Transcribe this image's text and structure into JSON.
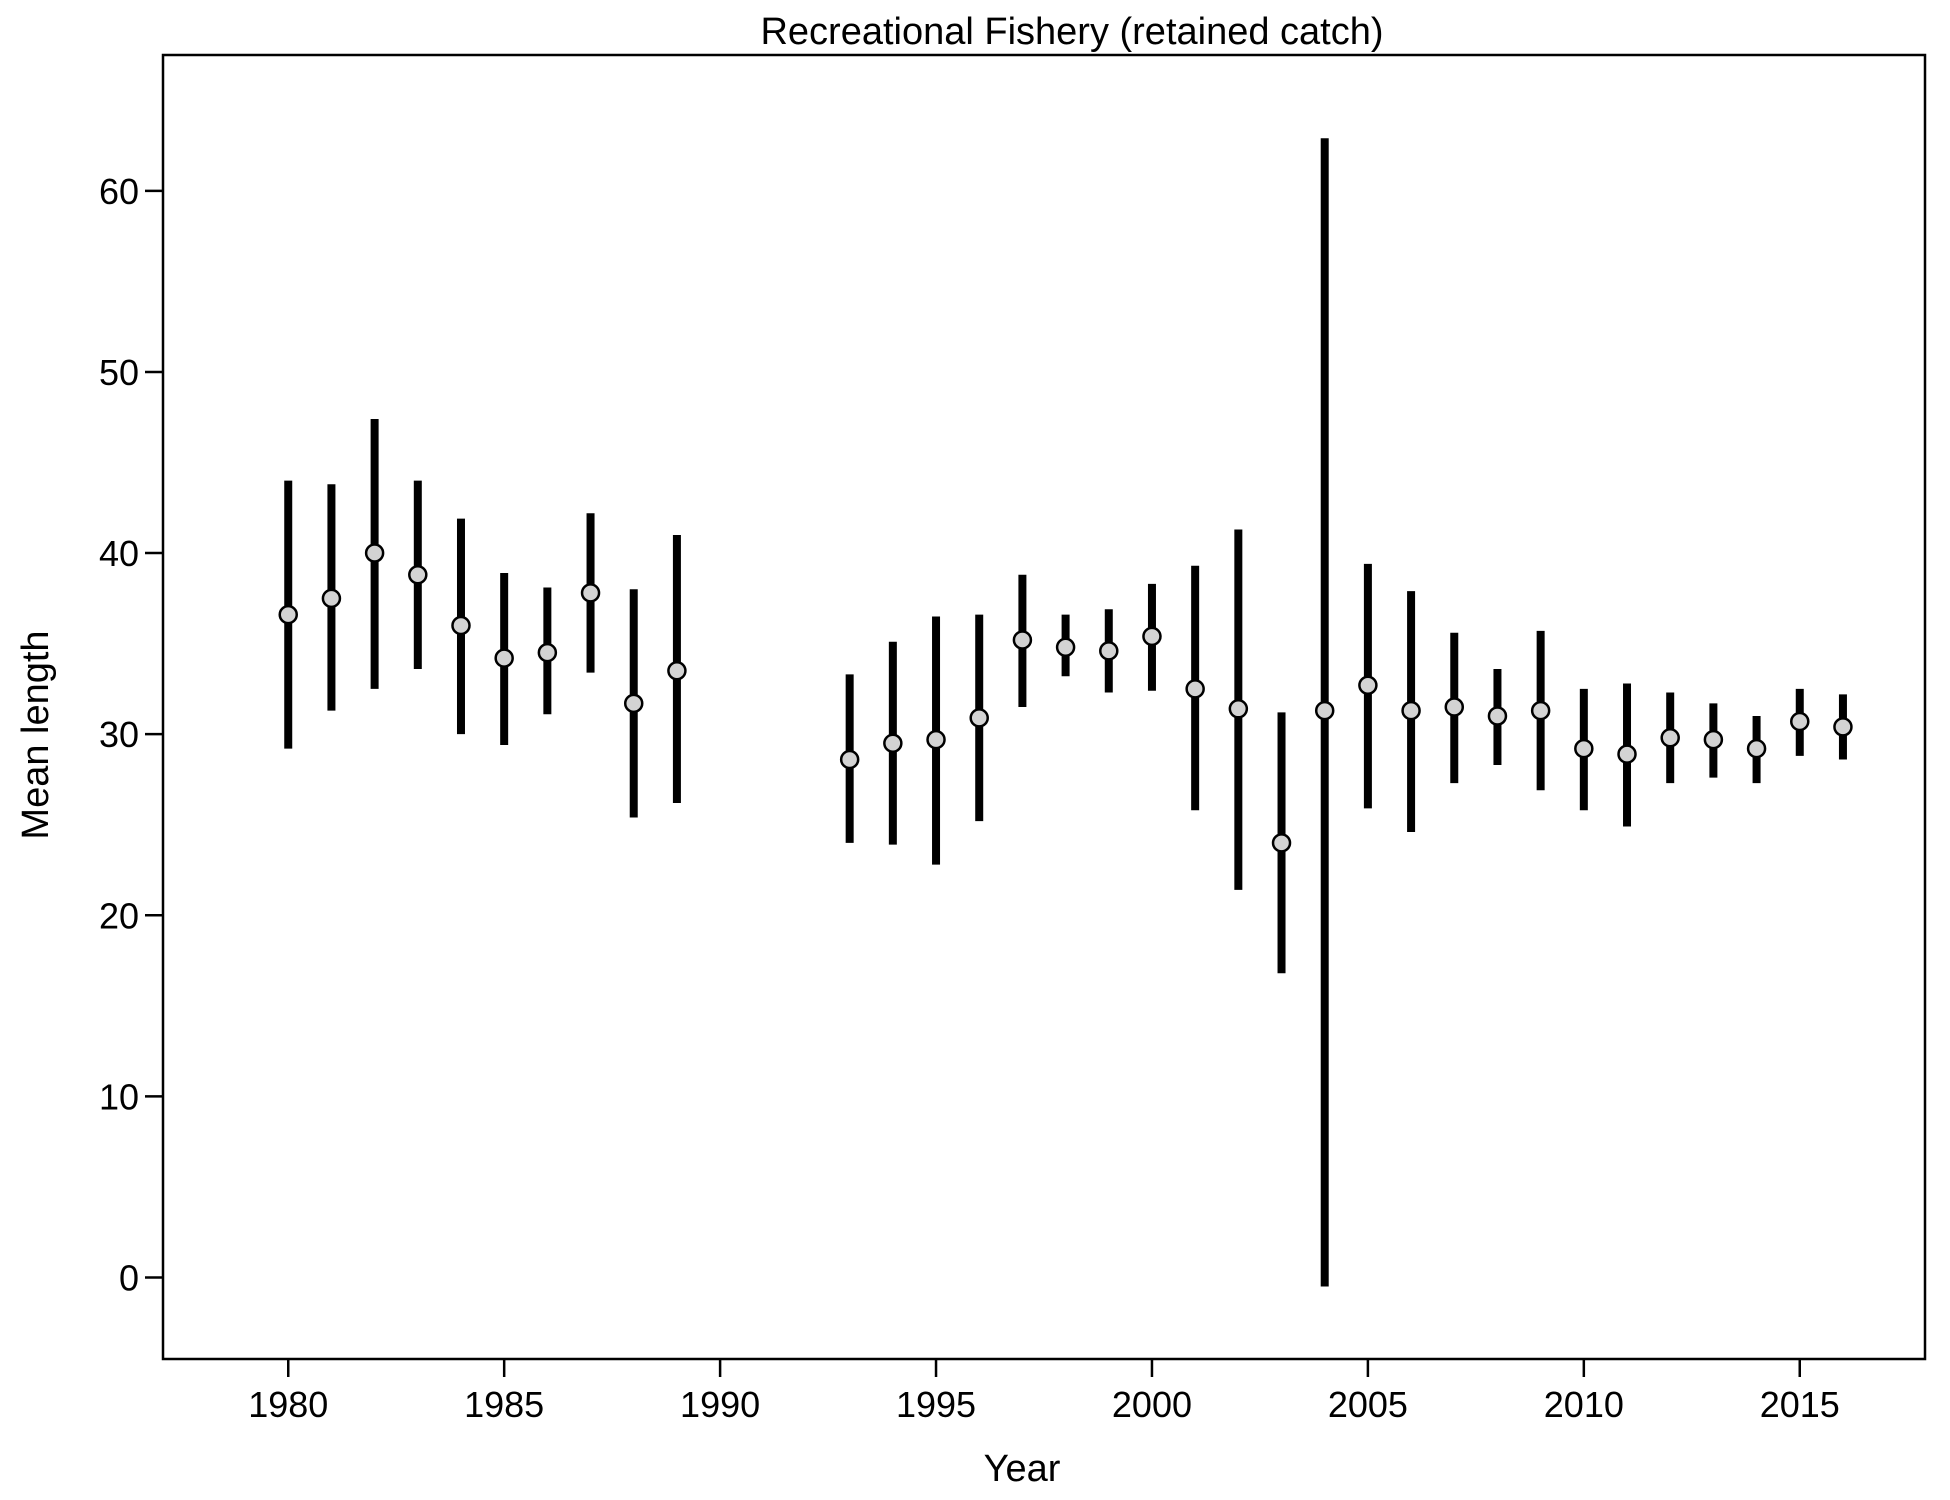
{
  "chart_data": {
    "type": "scatter",
    "title": "Recreational Fishery (retained catch)",
    "xlabel": "Year",
    "ylabel": "Mean length",
    "xlim": [
      1977.1,
      2017.9
    ],
    "ylim": [
      -4.5,
      67.5
    ],
    "xticks": [
      1980,
      1985,
      1990,
      1995,
      2000,
      2005,
      2010,
      2015
    ],
    "yticks": [
      0,
      10,
      20,
      30,
      40,
      50,
      60
    ],
    "grid": false,
    "legend": "none",
    "colors": {
      "error_bar": "#000000",
      "point_fill": "#d3d3d3",
      "point_stroke": "#000000",
      "frame": "#000000"
    },
    "series": [
      {
        "x": [
          1980,
          1981,
          1982,
          1983,
          1984,
          1985,
          1986,
          1987,
          1988,
          1989,
          1993,
          1994,
          1995,
          1996,
          1997,
          1998,
          1999,
          2000,
          2001,
          2002,
          2003,
          2004,
          2005,
          2006,
          2007,
          2008,
          2009,
          2010,
          2011,
          2012,
          2013,
          2014,
          2015,
          2016
        ],
        "y": [
          36.6,
          37.5,
          40.0,
          38.8,
          36.0,
          34.2,
          34.5,
          37.8,
          31.7,
          33.5,
          28.6,
          29.5,
          29.7,
          30.9,
          35.2,
          34.8,
          34.6,
          35.4,
          32.5,
          31.4,
          24.0,
          31.3,
          32.7,
          31.3,
          31.5,
          31.0,
          31.3,
          29.2,
          28.9,
          29.8,
          29.7,
          29.2,
          30.7,
          30.4
        ],
        "lower": [
          29.2,
          31.3,
          32.5,
          33.6,
          30.0,
          29.4,
          31.1,
          33.4,
          25.4,
          26.2,
          24.0,
          23.9,
          22.8,
          25.2,
          31.5,
          33.2,
          32.3,
          32.4,
          25.8,
          21.4,
          16.8,
          -0.5,
          25.9,
          24.6,
          27.3,
          28.3,
          26.9,
          25.8,
          24.9,
          27.3,
          27.6,
          27.3,
          28.8,
          28.6
        ],
        "upper": [
          44.0,
          43.8,
          47.4,
          44.0,
          41.9,
          38.9,
          38.1,
          42.2,
          38.0,
          41.0,
          33.3,
          35.1,
          36.5,
          36.6,
          38.8,
          36.6,
          36.9,
          38.3,
          39.3,
          41.3,
          31.2,
          62.9,
          39.4,
          37.9,
          35.6,
          33.6,
          35.7,
          32.5,
          32.8,
          32.3,
          31.7,
          31.0,
          32.5,
          32.2
        ]
      }
    ]
  }
}
